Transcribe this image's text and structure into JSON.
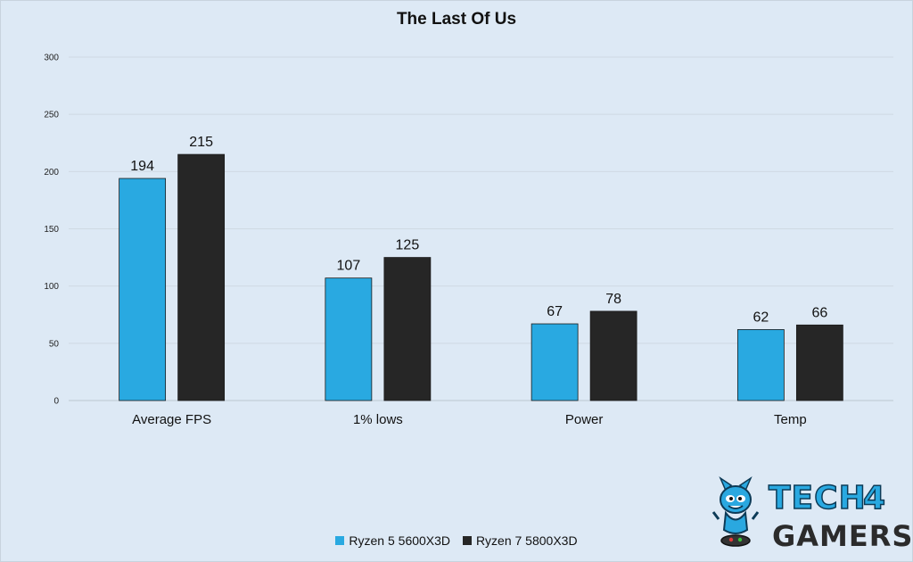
{
  "chart_data": {
    "type": "bar",
    "title": "The Last Of Us",
    "categories": [
      "Average FPS",
      "1% lows",
      "Power",
      "Temp"
    ],
    "series": [
      {
        "name": "Ryzen 5 5600X3D",
        "color": "#29a9e1",
        "values": [
          194,
          107,
          67,
          62
        ]
      },
      {
        "name": "Ryzen 7 5800X3D",
        "color": "#262626",
        "values": [
          215,
          125,
          78,
          66
        ]
      }
    ],
    "ylim": [
      0,
      300
    ],
    "yticks": [
      0,
      50,
      100,
      150,
      200,
      250,
      300
    ],
    "grid": true,
    "data_labels": true,
    "legend_position": "bottom",
    "xlabel": "",
    "ylabel": ""
  },
  "branding": {
    "logo_text": "TECH 4 GAMERS",
    "logo_color": "#29a9e1"
  }
}
